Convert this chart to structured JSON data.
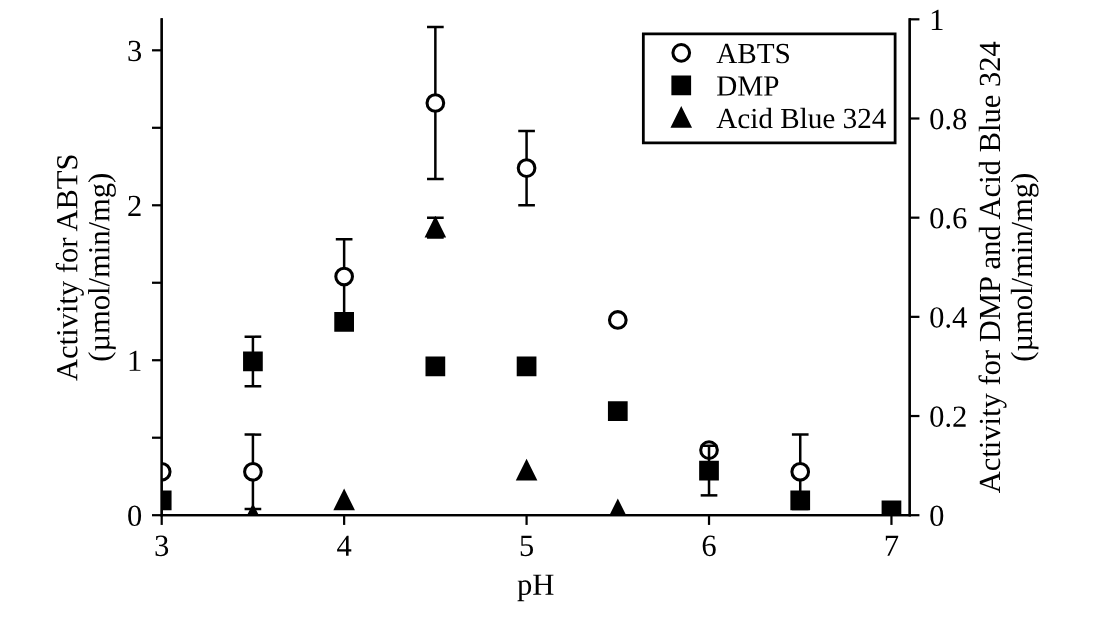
{
  "chart_data": {
    "type": "scatter",
    "xlabel": "pH",
    "ylabel": "Activity for ABTS\n(µmol/min/mg)",
    "y2label": "Activity for DMP and Acid Blue 324\n(µmol/min/mg)",
    "x": [
      3,
      3.5,
      4,
      4.5,
      5,
      5.5,
      6,
      6.5,
      7
    ],
    "xlim": [
      3,
      7.1
    ],
    "xticks": [
      3,
      4,
      5,
      6,
      7
    ],
    "ylim": [
      0,
      3.2
    ],
    "yticks": [
      0,
      {
        "value": 0.5,
        "label": null
      },
      1,
      {
        "value": 1.5,
        "label": null
      },
      2,
      {
        "value": 2.5,
        "label": null
      },
      3
    ],
    "y2lim": [
      0,
      1
    ],
    "y2ticks": [
      0,
      0.2,
      0.4,
      0.6,
      0.8,
      1
    ],
    "series": [
      {
        "name": "ABTS",
        "color": "#000000",
        "marker": "circle",
        "values": [
          0.28,
          0.28,
          1.54,
          2.66,
          2.24,
          1.26,
          0.42,
          0.28,
          null
        ],
        "errors": [
          null,
          0.24,
          0.24,
          0.49,
          0.24,
          null,
          null,
          0.24,
          null
        ]
      },
      {
        "name": "DMP",
        "color": "#000000",
        "marker": "square",
        "axis": "y2",
        "values": [
          0.03,
          0.31,
          0.39,
          0.3,
          0.3,
          0.21,
          0.09,
          0.03,
          0.01
        ],
        "errors": [
          null,
          0.05,
          null,
          null,
          null,
          null,
          0.05,
          null,
          null
        ]
      },
      {
        "name": "Acid Blue 324",
        "color": "#000000",
        "marker": "triangle",
        "axis": "y2",
        "values": [
          null,
          0,
          0.03,
          0.58,
          0.09,
          0.01,
          null,
          null,
          null
        ],
        "errors": [
          null,
          null,
          null,
          0.02,
          null,
          null,
          null,
          null,
          null
        ]
      }
    ],
    "legend": "top right",
    "grid": false
  }
}
